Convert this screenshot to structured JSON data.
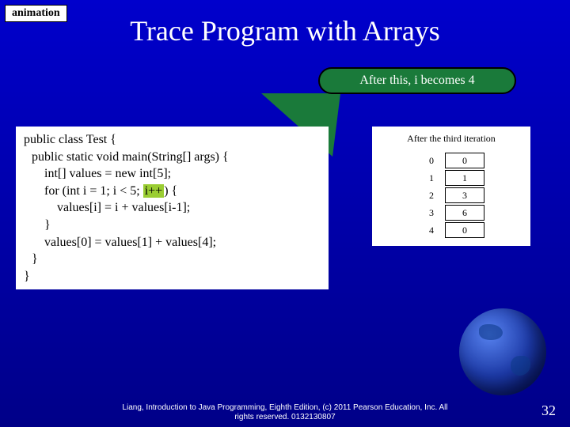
{
  "badge": "animation",
  "title": "Trace Program with Arrays",
  "callout": "After this, i becomes 4",
  "code": {
    "l1": "public class Test {",
    "l2": "public static void main(String[] args) {",
    "l3": "int[] values = new int[5];",
    "l4a": "for (int i = 1; i < 5; ",
    "l4hl": "i++",
    "l4b": ") {",
    "l5": "values[i] = i + values[i-1];",
    "l6": "}",
    "l7": "values[0] = values[1] + values[4];",
    "l8": "}",
    "l9": "}"
  },
  "array": {
    "caption": "After the third iteration",
    "rows": [
      {
        "index": "0",
        "value": "0"
      },
      {
        "index": "1",
        "value": "1"
      },
      {
        "index": "2",
        "value": "3"
      },
      {
        "index": "3",
        "value": "6"
      },
      {
        "index": "4",
        "value": "0"
      }
    ]
  },
  "footer": {
    "line1": "Liang, Introduction to Java Programming, Eighth Edition, (c) 2011 Pearson Education, Inc. All",
    "line2": "rights reserved. 0132130807"
  },
  "slideNumber": "32"
}
